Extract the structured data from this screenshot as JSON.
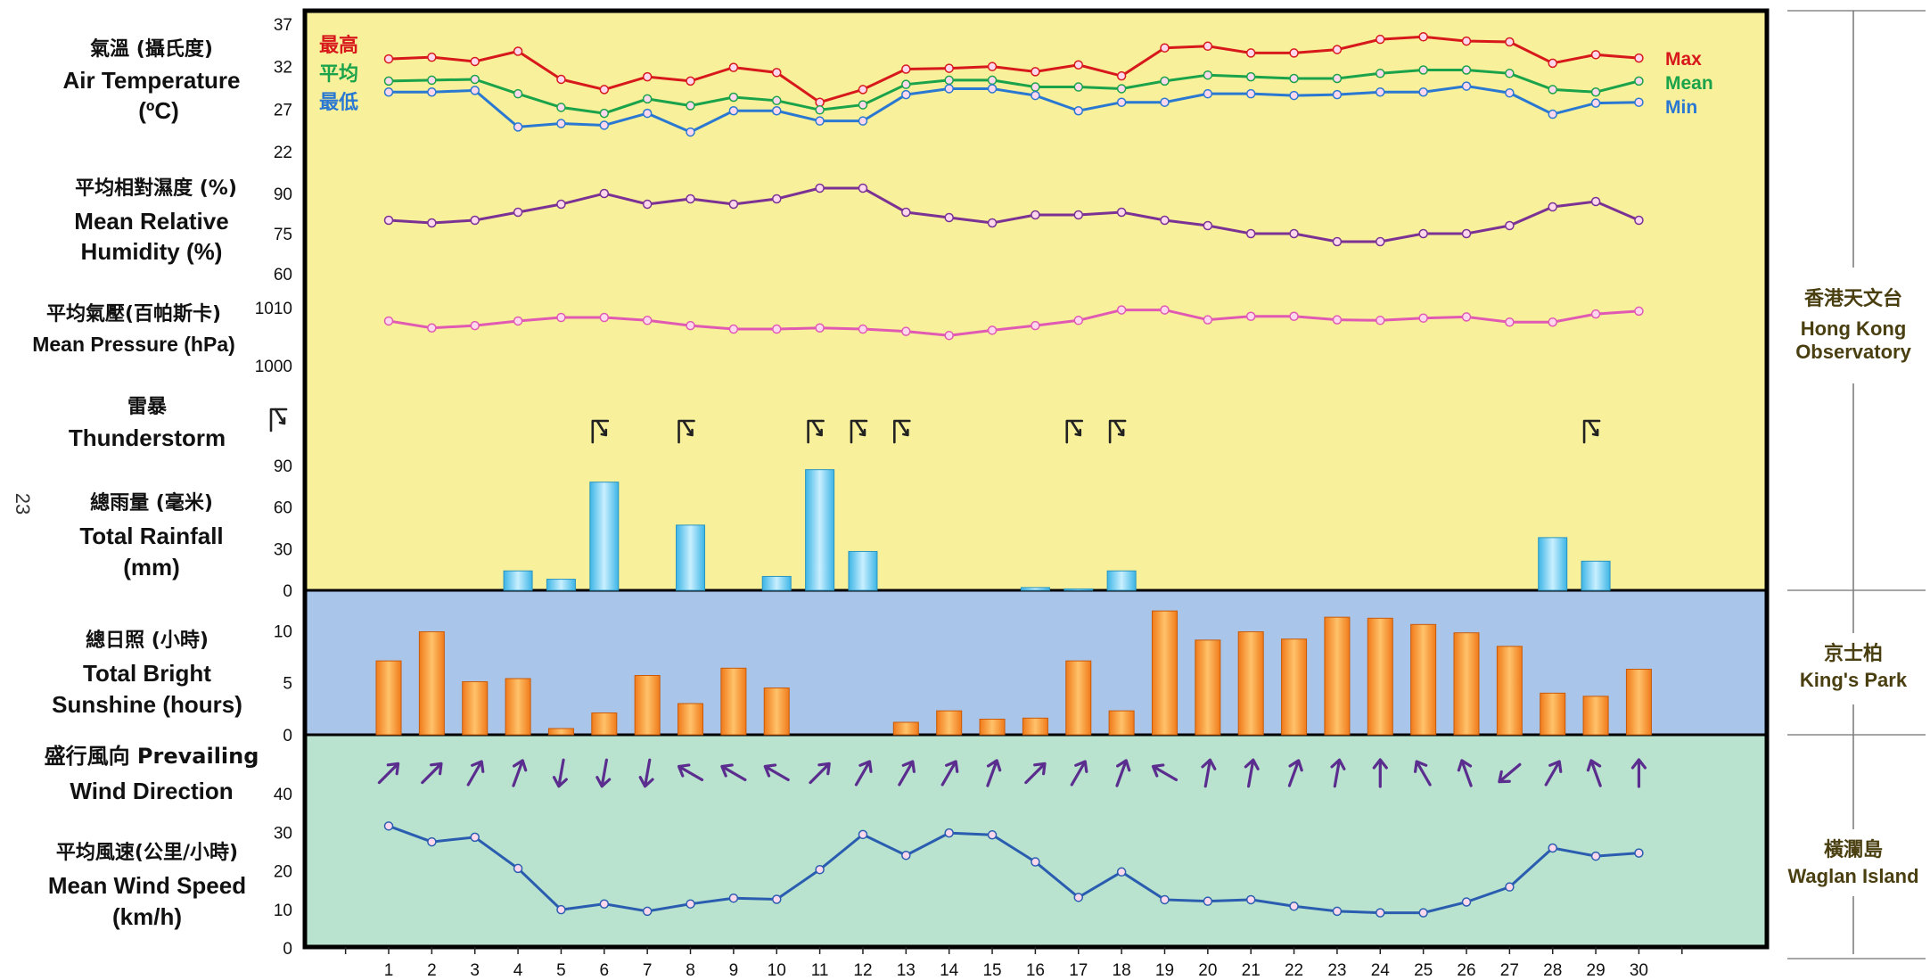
{
  "page_number": "23",
  "chart_data": {
    "type": "composite",
    "x": [
      1,
      2,
      3,
      4,
      5,
      6,
      7,
      8,
      9,
      10,
      11,
      12,
      13,
      14,
      15,
      16,
      17,
      18,
      19,
      20,
      21,
      22,
      23,
      24,
      25,
      26,
      27,
      28,
      29,
      30
    ],
    "x_ticks": [
      "1",
      "2",
      "3",
      "4",
      "5",
      "6",
      "7",
      "8",
      "9",
      "10",
      "11",
      "12",
      "13",
      "14",
      "15",
      "16",
      "17",
      "18",
      "19",
      "20",
      "21",
      "22",
      "23",
      "24",
      "25",
      "26",
      "27",
      "28",
      "29",
      "30"
    ],
    "colors": {
      "max": "#d7191c",
      "mean": "#1aa34a",
      "min": "#2a78d2",
      "humidity": "#7b3294",
      "pressure": "#e05ab4",
      "wind_speed": "#2a5db0",
      "wind_arrow": "#5b2d8e",
      "rain_bar": "#3cb5e6",
      "sun_bar": "#f07a1a",
      "panel_observatory": "#f8f09a",
      "panel_kingspark": "#a9c5ea",
      "panel_waglan": "#b9e3cf"
    },
    "temperature": {
      "label_zh": "氣溫 (攝氏度)",
      "label_en": "Air Temperature",
      "unit": "(ºC)",
      "ticks": [
        "37",
        "32",
        "27",
        "22"
      ],
      "ylim": [
        22,
        37
      ],
      "series": [
        {
          "name": "Max",
          "name_zh": "最高",
          "values": [
            32.9,
            33.1,
            32.6,
            33.8,
            30.5,
            29.3,
            30.8,
            30.3,
            31.9,
            31.3,
            27.8,
            29.3,
            31.7,
            31.8,
            32.0,
            31.4,
            32.2,
            30.9,
            34.2,
            34.4,
            33.6,
            33.6,
            34.0,
            35.2,
            35.5,
            35.0,
            34.9,
            32.4,
            33.4,
            33.0
          ]
        },
        {
          "name": "Mean",
          "name_zh": "平均",
          "values": [
            30.3,
            30.4,
            30.5,
            28.8,
            27.2,
            26.5,
            28.2,
            27.4,
            28.4,
            28.0,
            26.9,
            27.5,
            29.9,
            30.4,
            30.4,
            29.6,
            29.6,
            29.4,
            30.3,
            31.0,
            30.8,
            30.6,
            30.6,
            31.2,
            31.6,
            31.6,
            31.2,
            29.3,
            29.0,
            30.3
          ]
        },
        {
          "name": "Min",
          "name_zh": "最低",
          "values": [
            29.0,
            29.0,
            29.2,
            24.9,
            25.3,
            25.1,
            26.5,
            24.3,
            26.8,
            26.8,
            25.6,
            25.6,
            28.7,
            29.4,
            29.4,
            28.6,
            26.8,
            27.8,
            27.8,
            28.8,
            28.8,
            28.6,
            28.7,
            29.0,
            29.0,
            29.7,
            28.9,
            26.4,
            27.7,
            27.8
          ]
        }
      ]
    },
    "humidity": {
      "label_zh": "平均相對濕度 (%)",
      "label_en_1": "Mean Relative",
      "label_en_2": "Humidity (%)",
      "ticks": [
        "90",
        "75",
        "60"
      ],
      "ylim": [
        60,
        90
      ],
      "values": [
        80,
        79,
        80,
        83,
        86,
        90,
        86,
        88,
        86,
        88,
        92,
        92,
        83,
        81,
        79,
        82,
        82,
        83,
        80,
        78,
        75,
        75,
        72,
        72,
        75,
        75,
        78,
        85,
        87,
        80
      ]
    },
    "pressure": {
      "label_zh": "平均氣壓(百帕斯卡)",
      "label_en": "Mean Pressure (hPa)",
      "ticks": [
        "1010",
        "1000"
      ],
      "ylim": [
        1000,
        1010
      ],
      "values": [
        1007.7,
        1006.5,
        1006.9,
        1007.7,
        1008.3,
        1008.3,
        1007.8,
        1006.9,
        1006.3,
        1006.3,
        1006.5,
        1006.3,
        1005.9,
        1005.2,
        1006.1,
        1006.9,
        1007.8,
        1009.6,
        1009.6,
        1007.9,
        1008.5,
        1008.5,
        1007.9,
        1007.8,
        1008.2,
        1008.4,
        1007.5,
        1007.5,
        1008.9,
        1009.4
      ]
    },
    "thunderstorm": {
      "label_zh": "雷暴",
      "label_en": "Thunderstorm",
      "days": [
        6,
        8,
        11,
        12,
        13,
        17,
        18,
        29
      ]
    },
    "rainfall": {
      "label_zh": "總雨量 (毫米)",
      "label_en_1": "Total Rainfall",
      "label_en_2": "(mm)",
      "ticks": [
        "90",
        "60",
        "30",
        "0"
      ],
      "ylim": [
        0,
        90
      ],
      "values": [
        0,
        0,
        0,
        14,
        8,
        78,
        0,
        47,
        0,
        10,
        87,
        28,
        0,
        0,
        0,
        2,
        1,
        14,
        0,
        0,
        0,
        0,
        0,
        0,
        0,
        0,
        0,
        38,
        21,
        0
      ]
    },
    "sunshine": {
      "label_zh": "總日照 (小時)",
      "label_en_1": "Total Bright",
      "label_en_2": "Sunshine (hours)",
      "ticks": [
        "10",
        "5",
        "0"
      ],
      "ylim": [
        0,
        12
      ],
      "values": [
        7.1,
        9.9,
        5.1,
        5.4,
        0.6,
        2.1,
        5.7,
        3.0,
        6.4,
        4.5,
        0,
        0,
        1.2,
        2.3,
        1.5,
        1.6,
        7.1,
        2.3,
        11.9,
        9.1,
        9.9,
        9.2,
        11.3,
        11.2,
        10.6,
        9.8,
        8.5,
        4.0,
        3.7,
        6.3
      ]
    },
    "wind_direction": {
      "label_zh": "盛行風向 Prevailing",
      "label_en": "Wind Direction",
      "bearings_deg": [
        45,
        45,
        30,
        20,
        190,
        190,
        190,
        300,
        300,
        300,
        45,
        30,
        30,
        30,
        20,
        45,
        30,
        20,
        300,
        10,
        10,
        20,
        10,
        0,
        330,
        340,
        230,
        30,
        340,
        0
      ]
    },
    "wind_speed": {
      "label_zh": "平均風速(公里/小時)",
      "label_en_1": "Mean Wind Speed",
      "label_en_2": "(km/h)",
      "ticks": [
        "40",
        "30",
        "20",
        "10",
        "0"
      ],
      "ylim": [
        0,
        40
      ],
      "values": [
        31.6,
        27.5,
        28.7,
        20.6,
        9.9,
        11.4,
        9.5,
        11.4,
        12.9,
        12.6,
        20.3,
        29.4,
        24.0,
        29.8,
        29.3,
        22.3,
        13.1,
        19.7,
        12.5,
        12.1,
        12.5,
        10.8,
        9.5,
        9.1,
        9.1,
        11.9,
        15.8,
        25.9,
        23.8,
        24.6
      ]
    },
    "stations": [
      {
        "name_zh": "香港天文台",
        "name_en_1": "Hong Kong",
        "name_en_2": "Observatory"
      },
      {
        "name_zh": "京士柏",
        "name_en_1": "King's Park"
      },
      {
        "name_zh": "橫瀾島",
        "name_en_1": "Waglan Island"
      }
    ]
  }
}
